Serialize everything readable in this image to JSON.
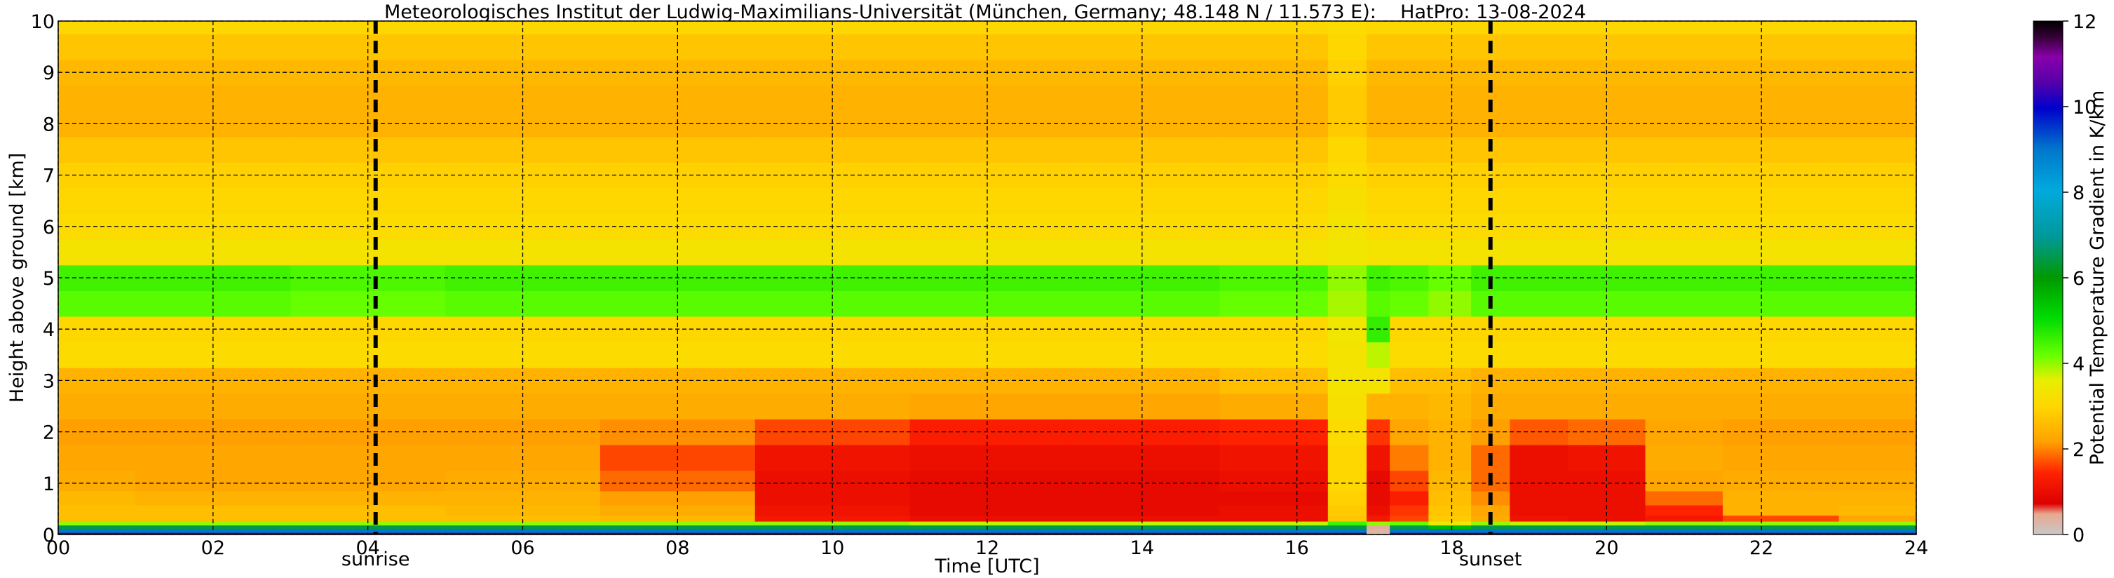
{
  "chart_data": {
    "type": "heatmap",
    "title": "Meteorologisches Institut der Ludwig-Maximilians-Universität (München, Germany; 48.148 N / 11.573 E):    HatPro: 13-08-2024",
    "xlabel": "Time [UTC]",
    "ylabel": "Height above ground [km]",
    "xlim": [
      0,
      24
    ],
    "ylim": [
      0,
      10
    ],
    "x_ticks": [
      "00",
      "02",
      "04",
      "06",
      "08",
      "10",
      "12",
      "14",
      "16",
      "18",
      "20",
      "22",
      "24"
    ],
    "y_ticks": [
      "0",
      "1",
      "2",
      "3",
      "4",
      "5",
      "6",
      "7",
      "8",
      "9",
      "10"
    ],
    "grid": true,
    "colorbar": {
      "label": "Potential Temperature Gradient in K/km",
      "range": [
        0,
        12
      ],
      "ticks": [
        "0",
        "2",
        "4",
        "6",
        "8",
        "10",
        "12"
      ]
    },
    "markers": [
      {
        "label": "sunrise",
        "time": 4.1
      },
      {
        "label": "sunset",
        "time": 18.5
      }
    ],
    "profile_heights_km": [
      0,
      0.08,
      0.15,
      0.22,
      0.3,
      0.45,
      0.7,
      1.0,
      1.5,
      2.0,
      2.5,
      3.0,
      3.5,
      4.0,
      4.5,
      5.0,
      5.5,
      6.0,
      6.5,
      7.0,
      7.5,
      8.0,
      8.5,
      9.0,
      9.5,
      10.0
    ],
    "profile_times_utc": [
      0,
      2,
      4,
      6,
      8,
      10,
      12,
      14,
      16,
      16.8,
      17.0,
      17.4,
      18.0,
      18.5,
      19.0,
      20.0,
      21.0,
      22.0,
      24.0
    ],
    "values_k_per_km": [
      [
        11.5,
        9.0,
        6.5,
        4.0,
        2.6,
        2.6,
        2.5,
        2.3,
        2.2,
        2.1,
        2.3,
        2.4,
        3.1,
        3.0,
        4.3,
        4.5,
        3.3,
        3.1,
        3.0,
        2.9,
        2.7,
        2.4,
        2.4,
        2.5,
        2.7,
        3.0
      ],
      [
        11.5,
        9.0,
        6.5,
        4.0,
        2.6,
        2.6,
        2.4,
        2.2,
        2.2,
        2.1,
        2.3,
        2.4,
        3.1,
        3.0,
        4.3,
        4.5,
        3.3,
        3.1,
        3.0,
        2.9,
        2.7,
        2.4,
        2.4,
        2.5,
        2.7,
        3.0
      ],
      [
        11.5,
        9.0,
        6.5,
        4.0,
        2.6,
        2.6,
        2.4,
        2.2,
        2.2,
        2.1,
        2.3,
        2.4,
        3.1,
        3.0,
        4.2,
        4.4,
        3.3,
        3.1,
        3.0,
        2.9,
        2.7,
        2.4,
        2.4,
        2.5,
        2.7,
        3.0
      ],
      [
        11.5,
        9.0,
        6.5,
        4.0,
        2.6,
        2.5,
        2.4,
        2.3,
        2.2,
        2.1,
        2.3,
        2.4,
        3.1,
        3.0,
        4.3,
        4.5,
        3.3,
        3.1,
        3.0,
        2.9,
        2.7,
        2.4,
        2.4,
        2.5,
        2.7,
        3.0
      ],
      [
        11.5,
        9.0,
        6.5,
        4.0,
        2.5,
        2.3,
        2.1,
        1.8,
        1.6,
        2.0,
        2.3,
        2.4,
        3.1,
        3.0,
        4.3,
        4.5,
        3.3,
        3.1,
        3.0,
        2.9,
        2.7,
        2.4,
        2.4,
        2.5,
        2.7,
        3.0
      ],
      [
        11.5,
        9.0,
        6.5,
        4.0,
        1.2,
        1.1,
        1.0,
        1.0,
        1.1,
        1.6,
        2.3,
        2.4,
        3.1,
        3.0,
        4.3,
        4.5,
        3.3,
        3.1,
        3.0,
        2.9,
        2.7,
        2.4,
        2.4,
        2.5,
        2.7,
        3.0
      ],
      [
        11.5,
        9.0,
        6.5,
        3.8,
        1.0,
        0.9,
        0.9,
        0.9,
        1.0,
        1.3,
        2.2,
        2.4,
        3.1,
        3.0,
        4.3,
        4.5,
        3.3,
        3.1,
        3.0,
        2.9,
        2.7,
        2.4,
        2.4,
        2.5,
        2.7,
        3.0
      ],
      [
        11.5,
        9.0,
        6.5,
        3.8,
        1.0,
        0.9,
        0.9,
        0.9,
        1.0,
        1.3,
        2.2,
        2.4,
        3.1,
        3.0,
        4.3,
        4.5,
        3.3,
        3.1,
        3.0,
        2.9,
        2.7,
        2.4,
        2.4,
        2.5,
        2.7,
        3.0
      ],
      [
        11.5,
        9.0,
        6.5,
        3.8,
        1.0,
        1.0,
        0.9,
        1.0,
        1.1,
        1.4,
        2.3,
        2.6,
        3.1,
        3.0,
        4.2,
        4.4,
        3.3,
        3.1,
        3.0,
        2.9,
        2.7,
        2.4,
        2.4,
        2.5,
        2.7,
        3.0
      ],
      [
        11.5,
        9.0,
        6.5,
        4.5,
        2.7,
        2.8,
        2.9,
        3.0,
        3.0,
        3.1,
        3.2,
        3.3,
        3.3,
        3.4,
        3.9,
        4.0,
        3.4,
        3.3,
        3.2,
        3.1,
        3.0,
        2.8,
        2.8,
        2.9,
        3.0,
        3.1
      ],
      [
        0.3,
        0.3,
        0.4,
        4.0,
        1.2,
        1.0,
        0.9,
        0.9,
        1.1,
        1.5,
        2.4,
        3.3,
        3.8,
        4.6,
        4.3,
        4.5,
        3.3,
        3.1,
        3.0,
        2.9,
        2.7,
        2.4,
        2.4,
        2.5,
        2.7,
        3.0
      ],
      [
        11.5,
        9.0,
        6.5,
        4.2,
        1.6,
        1.5,
        1.3,
        1.6,
        1.9,
        2.2,
        2.4,
        2.6,
        3.1,
        3.0,
        4.2,
        4.4,
        3.3,
        3.1,
        3.0,
        2.9,
        2.7,
        2.4,
        2.4,
        2.5,
        2.7,
        3.0
      ],
      [
        11.5,
        9.0,
        5.5,
        3.5,
        2.8,
        2.7,
        2.6,
        2.5,
        2.4,
        2.4,
        2.5,
        2.6,
        3.1,
        3.0,
        4.0,
        4.2,
        3.3,
        3.1,
        3.0,
        2.9,
        2.7,
        2.4,
        2.4,
        2.5,
        2.7,
        3.0
      ],
      [
        11.5,
        9.0,
        6.5,
        4.0,
        2.3,
        2.2,
        2.0,
        1.8,
        1.8,
        2.1,
        2.3,
        2.4,
        3.1,
        3.0,
        4.3,
        4.5,
        3.3,
        3.1,
        3.0,
        2.9,
        2.7,
        2.4,
        2.4,
        2.5,
        2.7,
        3.0
      ],
      [
        11.5,
        9.0,
        6.5,
        3.8,
        1.1,
        1.0,
        1.0,
        1.0,
        1.0,
        1.7,
        2.3,
        2.4,
        3.1,
        3.0,
        4.3,
        4.5,
        3.3,
        3.1,
        3.0,
        2.9,
        2.7,
        2.4,
        2.4,
        2.5,
        2.7,
        3.0
      ],
      [
        11.5,
        9.0,
        6.5,
        3.8,
        1.0,
        1.0,
        1.0,
        1.0,
        1.1,
        1.8,
        2.3,
        2.4,
        3.1,
        3.0,
        4.3,
        4.5,
        3.3,
        3.1,
        3.0,
        2.9,
        2.7,
        2.4,
        2.4,
        2.5,
        2.7,
        3.0
      ],
      [
        11.5,
        9.0,
        6.5,
        4.0,
        1.2,
        1.4,
        1.8,
        2.2,
        2.3,
        2.2,
        2.3,
        2.4,
        3.1,
        3.0,
        4.3,
        4.5,
        3.3,
        3.1,
        3.0,
        2.9,
        2.7,
        2.4,
        2.4,
        2.5,
        2.7,
        3.0
      ],
      [
        11.5,
        9.0,
        6.5,
        4.0,
        1.6,
        2.4,
        2.4,
        2.3,
        2.2,
        2.1,
        2.3,
        2.4,
        3.1,
        3.0,
        4.3,
        4.5,
        3.3,
        3.1,
        3.0,
        2.9,
        2.7,
        2.4,
        2.4,
        2.5,
        2.7,
        3.0
      ],
      [
        11.5,
        9.0,
        6.5,
        4.0,
        2.2,
        2.5,
        2.4,
        2.3,
        2.2,
        2.1,
        2.3,
        2.4,
        3.1,
        3.0,
        4.3,
        4.5,
        3.3,
        3.1,
        3.0,
        2.9,
        2.7,
        2.4,
        2.4,
        2.5,
        2.7,
        3.0
      ]
    ]
  }
}
